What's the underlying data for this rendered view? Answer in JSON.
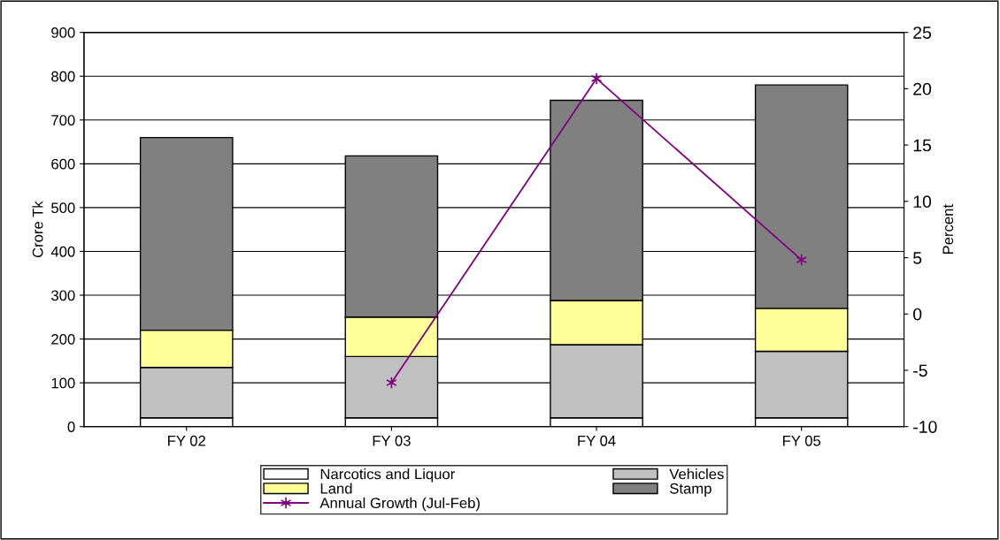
{
  "chart_data": {
    "type": "bar",
    "stacked": true,
    "ylabel": "Crore Tk",
    "y2label": "Percent",
    "categories": [
      "FY 02",
      "FY 03",
      "FY 04",
      "FY 05"
    ],
    "series": [
      {
        "name": "Narcotics and Liquor",
        "color": "#ffffff",
        "values": [
          20,
          20,
          20,
          20
        ]
      },
      {
        "name": "Vehicles",
        "color": "#c0c0c0",
        "values": [
          115,
          140,
          167,
          152
        ]
      },
      {
        "name": "Land",
        "color": "#ffff99",
        "values": [
          85,
          90,
          101,
          98
        ]
      },
      {
        "name": "Stamp",
        "color": "#808080",
        "values": [
          440,
          368,
          457,
          510
        ]
      },
      {
        "name": "Annual Growth (Jul-Feb)",
        "type": "line",
        "axis": "y2",
        "color": "#800080",
        "marker": "cross",
        "values": [
          null,
          -6.1,
          20.9,
          4.8
        ]
      }
    ],
    "ylim": [
      0,
      900
    ],
    "yticks": [
      0,
      100,
      200,
      300,
      400,
      500,
      600,
      700,
      800,
      900
    ],
    "y2lim": [
      -10,
      25
    ],
    "y2ticks": [
      -10,
      -5,
      0,
      5,
      10,
      15,
      20,
      25
    ],
    "grid": "y",
    "legend": "bottom"
  }
}
